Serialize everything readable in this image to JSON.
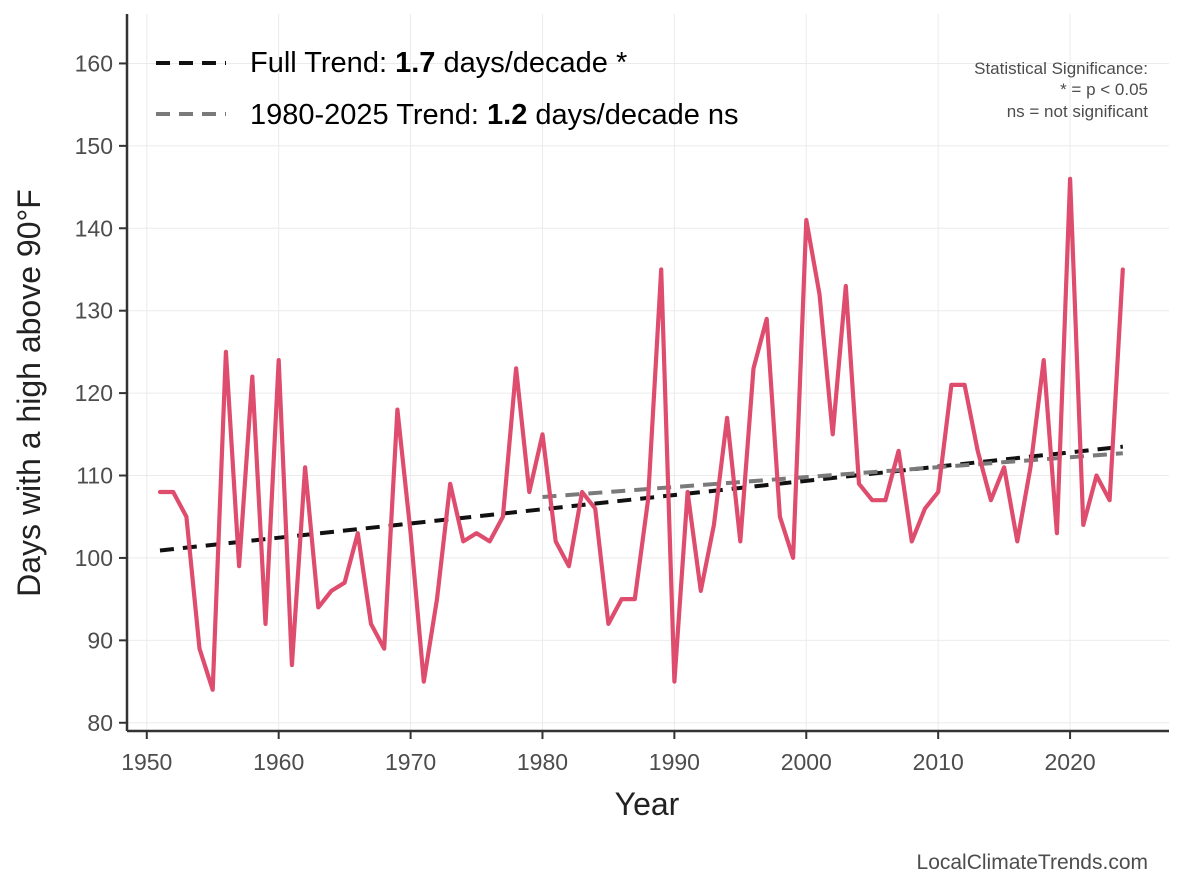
{
  "chart_data": {
    "type": "line",
    "title": "",
    "xlabel": "Year",
    "ylabel": "Days with a high above 90°F",
    "xlim": [
      1948.5,
      2027.5
    ],
    "ylim": [
      79,
      166
    ],
    "xticks": [
      1950,
      1960,
      1970,
      1980,
      1990,
      2000,
      2010,
      2020
    ],
    "yticks": [
      80,
      90,
      100,
      110,
      120,
      130,
      140,
      150,
      160
    ],
    "grid": true,
    "legend_position": "top-left",
    "colors": {
      "series": "#df4d6e",
      "full_trend": "#111111",
      "recent_trend": "#7a7a7a"
    },
    "series": [
      {
        "x": [
          1951,
          1952,
          1953,
          1954,
          1955,
          1956,
          1957,
          1958,
          1959,
          1960,
          1961,
          1962,
          1963,
          1964,
          1965,
          1966,
          1967,
          1968,
          1969,
          1970,
          1971,
          1972,
          1973,
          1974,
          1975,
          1976,
          1977,
          1978,
          1979,
          1980,
          1981,
          1982,
          1983,
          1984,
          1985,
          1986,
          1987,
          1988,
          1989,
          1990,
          1991,
          1992,
          1993,
          1994,
          1995,
          1996,
          1997,
          1998,
          1999,
          2000,
          2001,
          2002,
          2003,
          2004,
          2005,
          2006,
          2007,
          2008,
          2009,
          2010,
          2011,
          2012,
          2013,
          2014,
          2015,
          2016,
          2017,
          2018,
          2019,
          2020,
          2021,
          2022,
          2023,
          2024
        ],
        "values": [
          108,
          108,
          105,
          89,
          84,
          125,
          99,
          122,
          92,
          124,
          87,
          111,
          94,
          96,
          97,
          103,
          92,
          89,
          118,
          103,
          85,
          95,
          109,
          102,
          103,
          102,
          105,
          123,
          108,
          115,
          102,
          99,
          108,
          106,
          92,
          95,
          95,
          107,
          135,
          85,
          108,
          96,
          104,
          117,
          102,
          123,
          129,
          105,
          100,
          141,
          132,
          115,
          133,
          109,
          107,
          107,
          113,
          102,
          106,
          108,
          121,
          121,
          113,
          107,
          111,
          102,
          111,
          124,
          103,
          146,
          104,
          110,
          107,
          135
        ]
      }
    ],
    "trend_lines": [
      {
        "label_prefix": "Full Trend: ",
        "label_value": "1.7",
        "label_suffix": " days/decade *",
        "x": [
          1951,
          2024
        ],
        "y": [
          100.9,
          113.5
        ]
      },
      {
        "label_prefix": "1980-2025 Trend: ",
        "label_value": "1.2",
        "label_suffix": " days/decade ns",
        "x": [
          1980,
          2024
        ],
        "y": [
          107.4,
          112.7
        ]
      }
    ],
    "significance_note": [
      "Statistical Significance:",
      "* = p < 0.05",
      "ns = not significant"
    ],
    "credit": "LocalClimateTrends.com"
  }
}
